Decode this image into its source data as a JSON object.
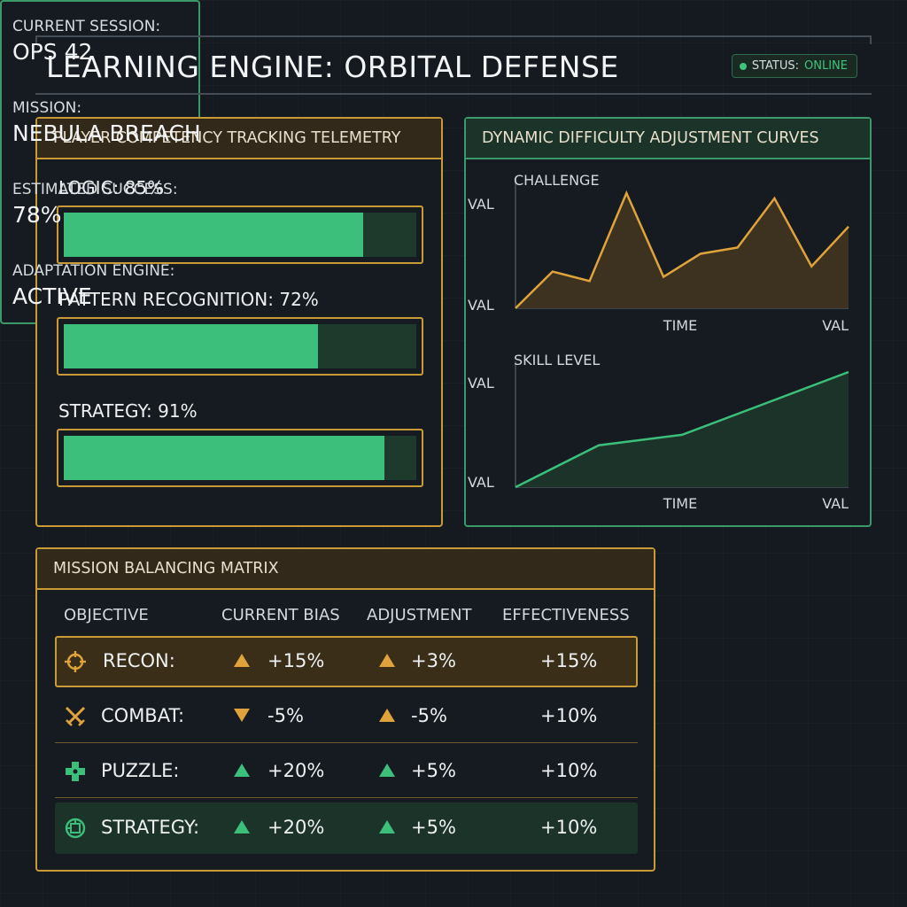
{
  "header": {
    "title": "LEARNING ENGINE: ORBITAL DEFENSE",
    "status_label": "STATUS:",
    "status_value": "ONLINE"
  },
  "competency": {
    "title": "PLAYER COMPETENCY TRACKING TELEMETRY",
    "metrics": [
      {
        "label": "LOGIC: 85%",
        "value": 85
      },
      {
        "label": "PATTERN RECOGNITION: 72%",
        "value": 72
      },
      {
        "label": "STRATEGY: 91%",
        "value": 91
      }
    ]
  },
  "chart_data": [
    {
      "type": "area",
      "title": "CHALLENGE",
      "xlabel": "TIME",
      "y_top_label": "VAL",
      "y_bottom_label": "VAL",
      "x_end_label": "VAL",
      "x": [
        0,
        1,
        2,
        3,
        4,
        5,
        6,
        7,
        8,
        9
      ],
      "values": [
        0,
        35,
        26,
        110,
        30,
        52,
        58,
        105,
        40,
        78
      ],
      "color": "#e0a33b"
    },
    {
      "type": "area",
      "title": "SKILL LEVEL",
      "xlabel": "TIME",
      "y_top_label": "VAL",
      "y_bottom_label": "VAL",
      "x_end_label": "VAL",
      "x": [
        0,
        1,
        2,
        3,
        4
      ],
      "values": [
        0,
        40,
        50,
        80,
        110
      ],
      "color": "#3cbf7b"
    }
  ],
  "curves": {
    "title": "DYNAMIC DIFFICULTY ADJUSTMENT CURVES"
  },
  "matrix": {
    "title": "MISSION BALANCING MATRIX",
    "columns": [
      "OBJECTIVE",
      "CURRENT BIAS",
      "ADJUSTMENT",
      "EFFECTIVENESS"
    ],
    "rows": [
      {
        "icon": "target-icon",
        "name": "RECON:",
        "bias": "+15%",
        "bias_dir": "up",
        "bias_color": "amber",
        "adjust": "+3%",
        "adjust_dir": "up",
        "adjust_color": "amber",
        "effect": "+15%",
        "style": "active"
      },
      {
        "icon": "crossed-swords-icon",
        "name": "COMBAT:",
        "bias": "-5%",
        "bias_dir": "down",
        "bias_color": "amber",
        "adjust": "-5%",
        "adjust_dir": "up",
        "adjust_color": "amber",
        "effect": "+10%",
        "style": "plain"
      },
      {
        "icon": "puzzle-piece-icon",
        "name": "PUZZLE:",
        "bias": "+20%",
        "bias_dir": "up",
        "bias_color": "green",
        "adjust": "+5%",
        "adjust_dir": "up",
        "adjust_color": "green",
        "effect": "+10%",
        "style": "plain"
      },
      {
        "icon": "strategy-chip-icon",
        "name": "STRATEGY:",
        "bias": "+20%",
        "bias_dir": "up",
        "bias_color": "green",
        "adjust": "+5%",
        "adjust_dir": "up",
        "adjust_color": "green",
        "effect": "+10%",
        "style": "dark"
      }
    ]
  },
  "session": {
    "items": [
      {
        "label": "CURRENT SESSION:",
        "value": "OPS 42"
      },
      {
        "label": "MISSION:",
        "value": "NEBULA BREACH"
      },
      {
        "label": "ESTIMATED SUCCESS:",
        "value": "78%"
      },
      {
        "label": "ADAPTATION ENGINE:",
        "value": "ACTIVE"
      }
    ]
  }
}
